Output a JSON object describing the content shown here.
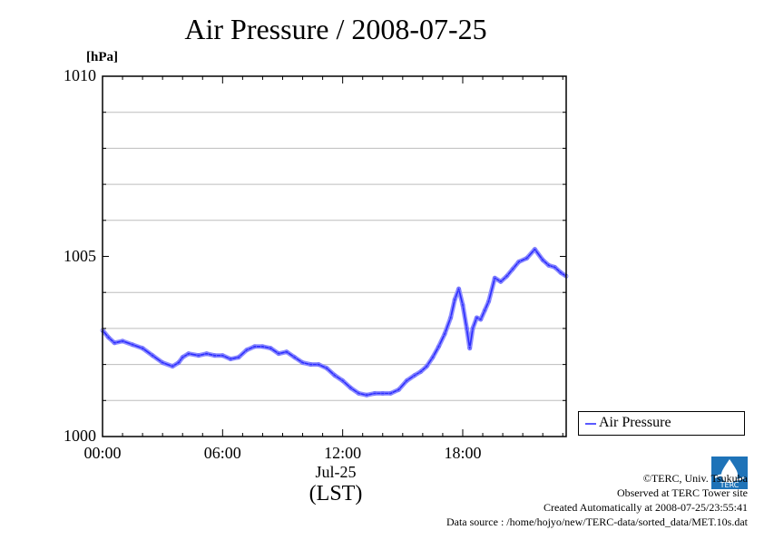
{
  "title": "Air Pressure / 2008-07-25",
  "unit": "[hPa]",
  "date_label": "Jul-25",
  "xlabel": "(LST)",
  "legend": {
    "label": "Air Pressure"
  },
  "credits": {
    "logo_text": "TERC",
    "line1": "©TERC, Univ. Tsukuba",
    "line2": "Observed at TERC Tower site",
    "line3": "Created Automatically at 2008-07-25/23:55:41",
    "line4": "Data source : /home/hojyo/new/TERC-data/sorted_data/MET.10s.dat"
  },
  "colors": {
    "series": "#2b2bff",
    "grid": "#bdbdbd",
    "logo": "#1e73b8"
  },
  "chart_data": {
    "type": "line",
    "title": "Air Pressure / 2008-07-25",
    "ylabel": "[hPa]",
    "xlabel": "(LST)",
    "ylim": [
      1000,
      1010
    ],
    "xlim_hours": [
      0,
      23.17
    ],
    "y_ticks": [
      "1000",
      "1005",
      "1010"
    ],
    "y_minor_grid": [
      1001,
      1002,
      1003,
      1004,
      1006,
      1007,
      1008,
      1009
    ],
    "x_ticks": [
      "00:00",
      "06:00",
      "12:00",
      "18:00"
    ],
    "grid": true,
    "legend_position": "outside-right-bottom",
    "series": [
      {
        "name": "Air Pressure",
        "x_hours": [
          0,
          0.3,
          0.6,
          1.0,
          1.5,
          2.0,
          2.5,
          3.0,
          3.5,
          3.8,
          4.0,
          4.3,
          4.8,
          5.2,
          5.6,
          6.0,
          6.4,
          6.8,
          7.2,
          7.6,
          8.0,
          8.4,
          8.8,
          9.2,
          9.6,
          10.0,
          10.4,
          10.8,
          11.2,
          11.6,
          12.0,
          12.4,
          12.8,
          13.2,
          13.6,
          14.0,
          14.4,
          14.8,
          15.2,
          15.6,
          15.9,
          16.2,
          16.5,
          16.8,
          17.1,
          17.4,
          17.6,
          17.8,
          18.0,
          18.2,
          18.35,
          18.5,
          18.7,
          18.9,
          19.1,
          19.3,
          19.6,
          19.9,
          20.2,
          20.5,
          20.8,
          21.2,
          21.6,
          22.0,
          22.3,
          22.6,
          22.9,
          23.17
        ],
        "values": [
          1002.95,
          1002.75,
          1002.6,
          1002.65,
          1002.55,
          1002.45,
          1002.25,
          1002.05,
          1001.95,
          1002.05,
          1002.2,
          1002.3,
          1002.25,
          1002.3,
          1002.25,
          1002.25,
          1002.15,
          1002.2,
          1002.4,
          1002.5,
          1002.5,
          1002.45,
          1002.3,
          1002.35,
          1002.2,
          1002.05,
          1002.0,
          1002.0,
          1001.9,
          1001.7,
          1001.55,
          1001.35,
          1001.2,
          1001.15,
          1001.2,
          1001.2,
          1001.2,
          1001.3,
          1001.55,
          1001.7,
          1001.8,
          1001.95,
          1002.2,
          1002.5,
          1002.85,
          1003.3,
          1003.8,
          1004.1,
          1003.65,
          1003.0,
          1002.45,
          1003.0,
          1003.3,
          1003.25,
          1003.5,
          1003.75,
          1004.4,
          1004.3,
          1004.45,
          1004.65,
          1004.85,
          1004.95,
          1005.2,
          1004.9,
          1004.75,
          1004.7,
          1004.55,
          1004.45
        ]
      }
    ]
  }
}
